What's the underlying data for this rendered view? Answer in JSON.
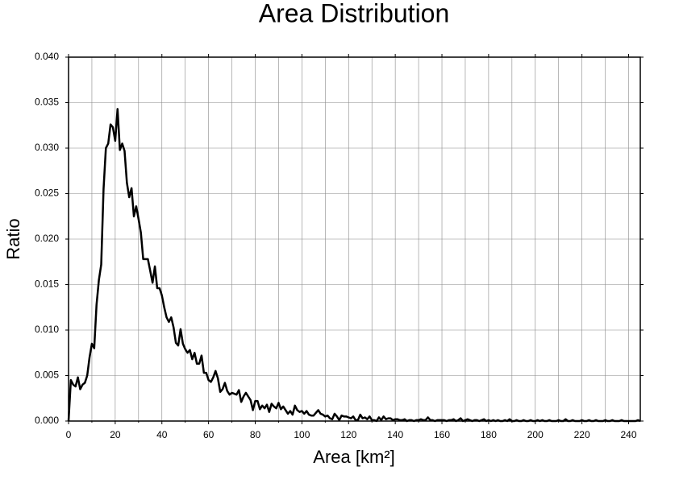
{
  "chart_data": {
    "type": "line",
    "title": "Area Distribution",
    "xlabel": "Area [km²]",
    "ylabel": "Ratio",
    "xlim": [
      0,
      245
    ],
    "ylim": [
      0,
      0.04
    ],
    "xticks": [
      0,
      20,
      40,
      60,
      80,
      100,
      120,
      140,
      160,
      180,
      200,
      220,
      240
    ],
    "xminorticks": [
      10,
      30,
      50,
      70,
      90,
      110,
      130,
      150,
      170,
      190,
      210,
      230
    ],
    "yticks": [
      {
        "value": 0,
        "label": "0.000"
      },
      0.005,
      {
        "value": 0.01,
        "label": "0.010"
      },
      0.015,
      {
        "value": 0.02,
        "label": "0.020"
      },
      0.025,
      {
        "value": 0.03,
        "label": "0.030"
      },
      0.035,
      {
        "value": 0.04,
        "label": "0.040"
      }
    ],
    "grid": true,
    "series": [
      {
        "color": "#000000",
        "x": [
          0,
          1,
          2,
          3,
          4,
          5,
          6,
          7,
          8,
          9,
          10,
          11,
          12,
          13,
          14,
          15,
          16,
          17,
          18,
          19,
          20,
          21,
          22,
          23,
          24,
          25,
          26,
          27,
          28,
          29,
          30,
          31,
          32,
          33,
          34,
          35,
          36,
          37,
          38,
          39,
          40,
          41,
          42,
          43,
          44,
          45,
          46,
          47,
          48,
          49,
          50,
          51,
          52,
          53,
          54,
          55,
          56,
          57,
          58,
          59,
          60,
          61,
          62,
          63,
          64,
          65,
          66,
          67,
          68,
          69,
          70,
          71,
          72,
          73,
          74,
          75,
          76,
          77,
          78,
          79,
          80,
          81,
          82,
          83,
          84,
          85,
          86,
          87,
          88,
          89,
          90,
          91,
          92,
          93,
          94,
          95,
          96,
          97,
          98,
          99,
          100,
          101,
          102,
          103,
          104,
          105,
          106,
          107,
          108,
          109,
          110,
          111,
          112,
          113,
          114,
          115,
          116,
          117,
          118,
          119,
          120,
          121,
          122,
          123,
          124,
          125,
          126,
          127,
          128,
          129,
          130,
          131,
          132,
          133,
          134,
          135,
          136,
          137,
          138,
          139,
          140,
          141,
          142,
          143,
          144,
          145,
          146,
          147,
          148,
          149,
          150,
          151,
          152,
          153,
          154,
          155,
          156,
          157,
          158,
          159,
          160,
          161,
          162,
          163,
          164,
          165,
          166,
          167,
          168,
          169,
          170,
          171,
          172,
          173,
          174,
          175,
          176,
          177,
          178,
          179,
          180,
          181,
          182,
          183,
          184,
          185,
          186,
          187,
          188,
          189,
          190,
          191,
          192,
          193,
          194,
          195,
          196,
          197,
          198,
          199,
          200,
          201,
          202,
          203,
          204,
          205,
          206,
          207,
          208,
          209,
          210,
          211,
          212,
          213,
          214,
          215,
          216,
          217,
          218,
          219,
          220,
          221,
          222,
          223,
          224,
          225,
          226,
          227,
          228,
          229,
          230,
          231,
          232,
          233,
          234,
          235,
          236,
          237,
          238,
          239,
          240,
          241,
          242,
          243,
          244,
          245
        ],
        "values": [
          0,
          0.0045,
          0.004,
          0.0038,
          0.0048,
          0.0035,
          0.004,
          0.0042,
          0.005,
          0.007,
          0.0085,
          0.008,
          0.0128,
          0.0155,
          0.0172,
          0.0255,
          0.03,
          0.0305,
          0.0326,
          0.0323,
          0.0308,
          0.0343,
          0.0298,
          0.0305,
          0.0297,
          0.0262,
          0.0246,
          0.0256,
          0.0225,
          0.0236,
          0.0222,
          0.0207,
          0.0178,
          0.0178,
          0.0178,
          0.0165,
          0.0152,
          0.017,
          0.0146,
          0.0146,
          0.0138,
          0.0125,
          0.0114,
          0.0109,
          0.0114,
          0.0103,
          0.0086,
          0.0083,
          0.0101,
          0.0085,
          0.0079,
          0.0075,
          0.0078,
          0.0068,
          0.0075,
          0.0063,
          0.0063,
          0.0072,
          0.0053,
          0.0053,
          0.0045,
          0.0043,
          0.0048,
          0.0055,
          0.0047,
          0.0032,
          0.0035,
          0.0042,
          0.0033,
          0.0029,
          0.0031,
          0.003,
          0.0029,
          0.0034,
          0.0021,
          0.0027,
          0.0031,
          0.0027,
          0.0023,
          0.0012,
          0.0022,
          0.0022,
          0.0013,
          0.0017,
          0.0014,
          0.0018,
          0.001,
          0.0019,
          0.0016,
          0.0014,
          0.002,
          0.0013,
          0.0016,
          0.0012,
          0.0008,
          0.0011,
          0.0007,
          0.0017,
          0.0012,
          0.001,
          0.0011,
          0.0008,
          0.0011,
          0.0007,
          0.0006,
          0.0006,
          0.0009,
          0.0012,
          0.0008,
          0.0007,
          0.0005,
          0.0006,
          0.0003,
          0.0002,
          0.0008,
          0.0005,
          0.0001,
          0.0006,
          0.0005,
          0.0005,
          0.0004,
          0.0003,
          0.0005,
          0.0001,
          0.0001,
          0.0007,
          0.0003,
          0.0004,
          0.0002,
          0.0005,
          0.0001,
          0.0001,
          0,
          0.0004,
          0.0001,
          0.0005,
          0.0002,
          0.0003,
          0.0003,
          0.0001,
          0.0002,
          0.0002,
          0.0001,
          0.0001,
          0.0002,
          0,
          0.0001,
          0.0001,
          0,
          0.0001,
          0.0001,
          0.0002,
          0.0001,
          0.0001,
          0.0004,
          0.0001,
          0.0001,
          0,
          0.0001,
          0.0001,
          0.0001,
          0.0001,
          0,
          0.0001,
          0.0001,
          0.0002,
          0,
          0.0001,
          0.0003,
          0,
          0.0001,
          0.0002,
          0.0001,
          0,
          0.0001,
          0.0001,
          0,
          0.0001,
          0.0002,
          0,
          0.0001,
          0,
          0.0001,
          0,
          0.0001,
          0,
          0,
          0.0001,
          0,
          0.0002,
          0,
          0,
          0.0001,
          0,
          0,
          0.0001,
          0,
          0,
          0.0001,
          0,
          0,
          0.0001,
          0,
          0.0001,
          0,
          0,
          0.0001,
          0,
          0,
          0,
          0.0001,
          0,
          0,
          0.0002,
          0,
          0,
          0.0001,
          0,
          0,
          0,
          0.0001,
          0,
          0,
          0.0001,
          0,
          0,
          0.0001,
          0,
          0,
          0,
          0.0001,
          0,
          0,
          0.0001,
          0,
          0,
          0,
          0.0001,
          0,
          0,
          0,
          0,
          0,
          0,
          0.0001,
          0
        ]
      }
    ]
  }
}
